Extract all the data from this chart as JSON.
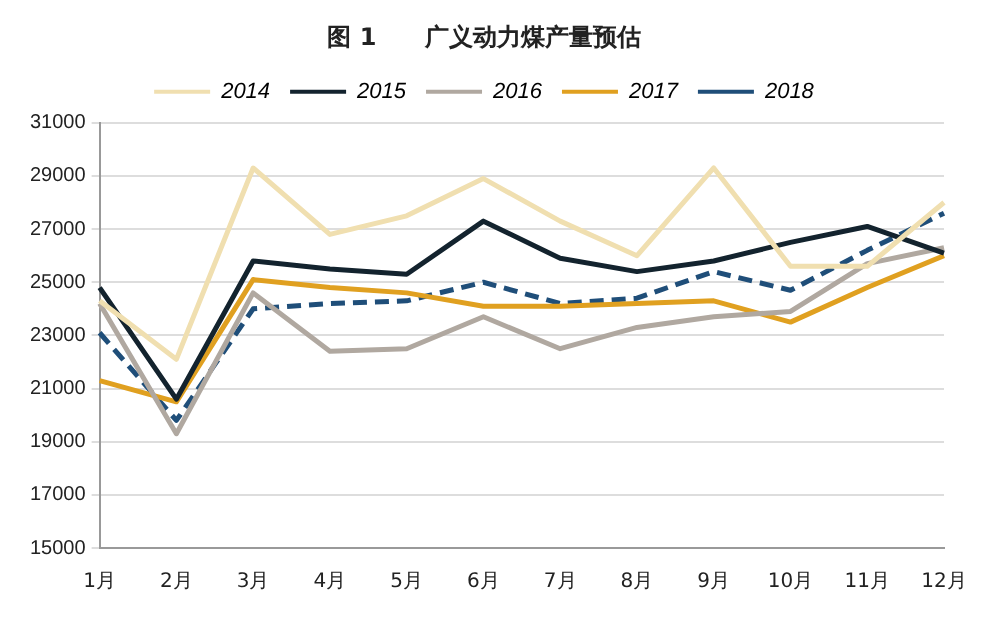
{
  "chart_data": {
    "type": "line",
    "title": "图 1　　广义动力煤产量预估",
    "categories": [
      "1月",
      "2月",
      "3月",
      "4月",
      "5月",
      "6月",
      "7月",
      "8月",
      "9月",
      "10月",
      "11月",
      "12月"
    ],
    "series": [
      {
        "name": "2014",
        "color": "#f0dfb0",
        "values": [
          24300,
          22100,
          29300,
          26800,
          27500,
          28900,
          27300,
          26000,
          29300,
          25600,
          25600,
          28000
        ]
      },
      {
        "name": "2015",
        "color": "#13232e",
        "values": [
          24800,
          20600,
          25800,
          25500,
          25300,
          27300,
          25900,
          25400,
          25800,
          26500,
          27100,
          26100
        ]
      },
      {
        "name": "2016",
        "color": "#b0a8a0",
        "values": [
          24200,
          19300,
          24600,
          22400,
          22500,
          23700,
          22500,
          23300,
          23700,
          23900,
          25700,
          26300
        ]
      },
      {
        "name": "2017",
        "color": "#e0a020",
        "values": [
          21300,
          20500,
          25100,
          24800,
          24600,
          24100,
          24100,
          24200,
          24300,
          23500,
          24800,
          26000
        ]
      },
      {
        "name": "2018",
        "color": "#1f4e79",
        "line_style": "dashed",
        "values": [
          23100,
          19800,
          24000,
          24200,
          24300,
          25000,
          24200,
          24400,
          25400,
          24700,
          26200,
          27600
        ]
      }
    ],
    "ylim": [
      15000,
      31000
    ],
    "yticks": [
      15000,
      17000,
      19000,
      21000,
      23000,
      25000,
      27000,
      29000,
      31000
    ],
    "grid": "y",
    "legend": "top",
    "marker": "none"
  }
}
